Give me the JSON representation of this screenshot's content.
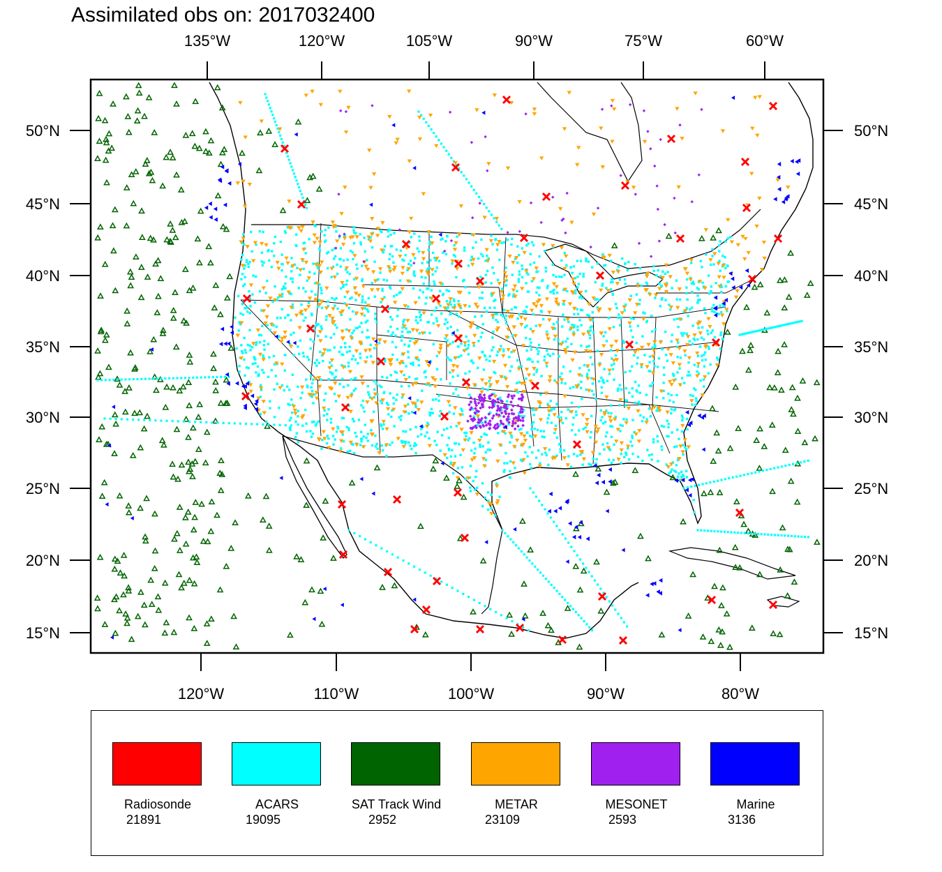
{
  "title": "Assimilated obs on: 2017032400",
  "top_axis_labels": [
    "135°W",
    "120°W",
    "105°W",
    "90°W",
    "75°W",
    "60°W"
  ],
  "bottom_axis_labels": [
    "120°W",
    "110°W",
    "100°W",
    "90°W",
    "80°W"
  ],
  "left_axis_labels": [
    "50°N",
    "45°N",
    "40°N",
    "35°N",
    "30°N",
    "25°N",
    "20°N",
    "15°N"
  ],
  "right_axis_labels": [
    "50°N",
    "45°N",
    "40°N",
    "35°N",
    "30°N",
    "25°N",
    "20°N",
    "15°N"
  ],
  "legend": [
    {
      "name": "Radiosonde",
      "count": "21891",
      "color": "#ff0000",
      "marker": "x"
    },
    {
      "name": "ACARS",
      "count": "19095",
      "color": "#00ffff",
      "marker": "square"
    },
    {
      "name": "SAT Track Wind",
      "count": "2952",
      "color": "#006400",
      "marker": "triangle-up"
    },
    {
      "name": "METAR",
      "count": "23109",
      "color": "#ffa500",
      "marker": "triangle-down"
    },
    {
      "name": "MESONET",
      "count": "2593",
      "color": "#a020f0",
      "marker": "diamond"
    },
    {
      "name": "Marine",
      "count": "3136",
      "color": "#0000ff",
      "marker": "triangle-left"
    }
  ],
  "map_region": "Continental United States and adjacent oceans, 15°N–52°N"
}
